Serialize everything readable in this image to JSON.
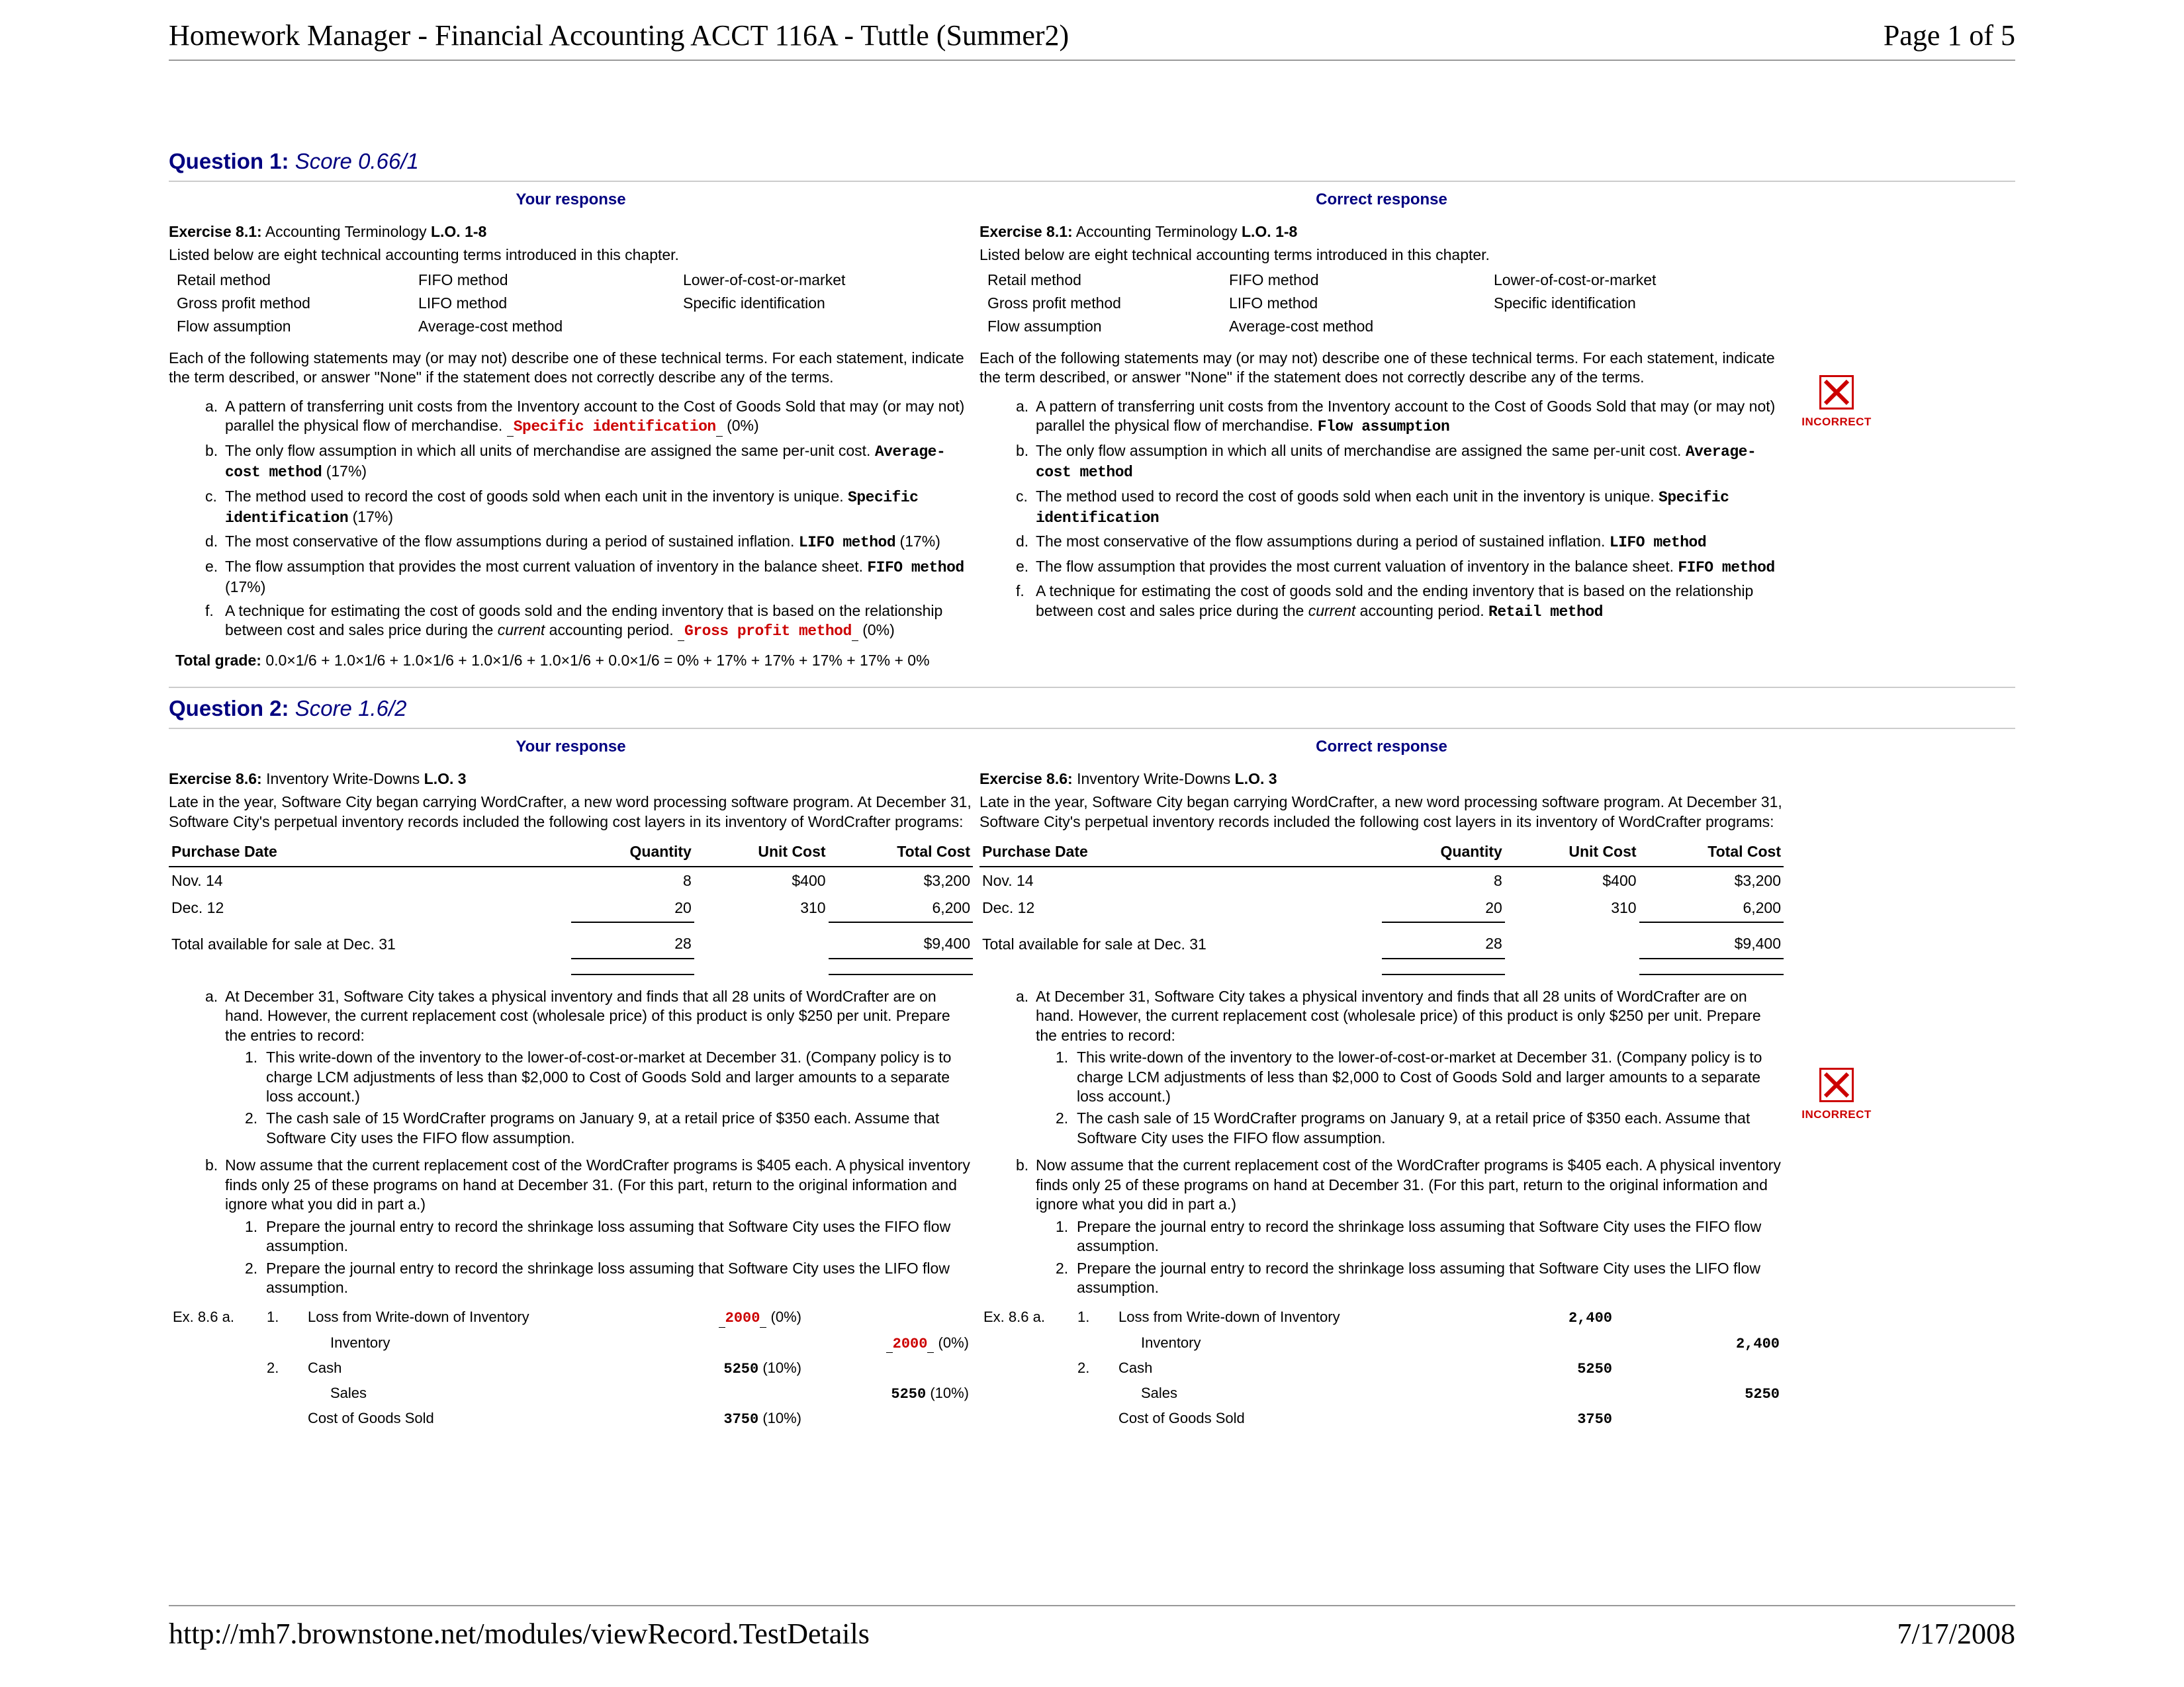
{
  "header": {
    "title": "Homework Manager - Financial Accounting ACCT 116A - Tuttle (Summer2)",
    "page": "Page 1 of 5"
  },
  "footer": {
    "url": "http://mh7.brownstone.net/modules/viewRecord.TestDetails",
    "date": "7/17/2008"
  },
  "labels": {
    "your": "Your response",
    "correct": "Correct response",
    "incorrect": "INCORRECT"
  },
  "q1": {
    "title": "Question 1:",
    "score": "Score 0.66/1",
    "ex_label": "Exercise 8.1:",
    "ex_name": "Accounting Terminology",
    "lo": "L.O. 1-8",
    "intro": "Listed below are eight technical accounting terms introduced in this chapter.",
    "terms": [
      [
        "Retail method",
        "FIFO method",
        "Lower-of-cost-or-market"
      ],
      [
        "Gross profit method",
        "LIFO method",
        "Specific identification"
      ],
      [
        "Flow assumption",
        "Average-cost method",
        ""
      ]
    ],
    "instr": "Each of the following statements may (or may not) describe one of these technical terms. For each statement, indicate the term described, or answer \"None\" if the statement does not correctly describe any of the terms.",
    "stmts_your": [
      {
        "l": "a.",
        "t": "A pattern of transferring unit costs from the Inventory account to the Cost of Goods Sold that may (or may not) parallel the physical flow of merchandise.",
        "ans": "Specific identification",
        "pct": "(0%)",
        "red": true
      },
      {
        "l": "b.",
        "t": "The only flow assumption in which all units of merchandise are assigned the same per-unit cost.",
        "ans": "Average-cost method",
        "pct": "(17%)"
      },
      {
        "l": "c.",
        "t": "The method used to record the cost of goods sold when each unit in the inventory is unique.",
        "ans": "Specific identification",
        "pct": "(17%)"
      },
      {
        "l": "d.",
        "t": "The most conservative of the flow assumptions during a period of sustained inflation.",
        "ans": "LIFO method",
        "pct": "(17%)"
      },
      {
        "l": "e.",
        "t": "The flow assumption that provides the most current valuation of inventory in the balance sheet.",
        "ans": "FIFO method",
        "pct": "(17%)"
      },
      {
        "l": "f.",
        "t": "A technique for estimating the cost of goods sold and the ending inventory that is based on the relationship between cost and sales price during the",
        "it": "current",
        "t2": "accounting period.",
        "ans": "Gross profit method",
        "pct": "(0%)",
        "red": true
      }
    ],
    "stmts_correct": [
      {
        "l": "a.",
        "t": "A pattern of transferring unit costs from the Inventory account to the Cost of Goods Sold that may (or may not) parallel the physical flow of merchandise.",
        "ans": "Flow assumption"
      },
      {
        "l": "b.",
        "t": "The only flow assumption in which all units of merchandise are assigned the same per-unit cost.",
        "ans": "Average-cost method"
      },
      {
        "l": "c.",
        "t": "The method used to record the cost of goods sold when each unit in the inventory is unique.",
        "ans": "Specific identification"
      },
      {
        "l": "d.",
        "t": "The most conservative of the flow assumptions during a period of sustained inflation.",
        "ans": "LIFO method"
      },
      {
        "l": "e.",
        "t": "The flow assumption that provides the most current valuation of inventory in the balance sheet.",
        "ans": "FIFO method"
      },
      {
        "l": "f.",
        "t": "A technique for estimating the cost of goods sold and the ending inventory that is based on the relationship between cost and sales price during the",
        "it": "current",
        "t2": "accounting period.",
        "ans": "Retail method"
      }
    ],
    "total_label": "Total grade:",
    "total_val": "0.0×1/6 + 1.0×1/6 + 1.0×1/6 + 1.0×1/6 + 1.0×1/6 + 0.0×1/6 = 0% + 17% + 17% + 17% + 17% + 0%"
  },
  "q2": {
    "title": "Question 2:",
    "score": "Score 1.6/2",
    "ex_label": "Exercise 8.6:",
    "ex_name": "Inventory Write-Downs",
    "lo": "L.O. 3",
    "intro": "Late in the year, Software City began carrying WordCrafter, a new word processing software program. At December 31, Software City's perpetual inventory records included the following cost layers in its inventory of WordCrafter programs:",
    "tbl": {
      "h": [
        "Purchase Date",
        "Quantity",
        "Unit Cost",
        "Total Cost"
      ],
      "rows": [
        [
          "Nov. 14",
          "8",
          "$400",
          "$3,200"
        ],
        [
          "Dec. 12",
          "20",
          "310",
          "6,200"
        ]
      ],
      "total": [
        "Total available for sale at Dec. 31",
        "28",
        "",
        "$9,400"
      ]
    },
    "parts": [
      {
        "l": "a.",
        "t": "At December 31, Software City takes a physical inventory and finds that all 28 units of WordCrafter are on hand. However, the current replacement cost (wholesale price) of this product is only $250 per unit. Prepare the entries to record:",
        "sub": [
          {
            "l": "1.",
            "t": "This write-down of the inventory to the lower-of-cost-or-market at December 31. (Company policy is to charge LCM adjustments of less than $2,000 to Cost of Goods Sold and larger amounts to a separate loss account.)"
          },
          {
            "l": "2.",
            "t": "The cash sale of 15 WordCrafter programs on January 9, at a retail price of $350 each. Assume that Software City uses the FIFO flow assumption."
          }
        ]
      },
      {
        "l": "b.",
        "t": "Now assume that the current replacement cost of the WordCrafter programs is $405 each. A physical inventory finds only 25 of these programs on hand at December 31. (For this part, return to the original information and ignore what you did in part a.)",
        "sub": [
          {
            "l": "1.",
            "t": "Prepare the journal entry to record the shrinkage loss assuming that Software City uses the FIFO flow assumption."
          },
          {
            "l": "2.",
            "t": "Prepare the journal entry to record the shrinkage loss assuming that Software City uses the LIFO flow assumption."
          }
        ]
      }
    ],
    "je_your": {
      "label": "Ex. 8.6 a.",
      "rows": [
        {
          "n": "1.",
          "acc": "Loss from Write-down of Inventory",
          "dr": "2000",
          "drpct": "(0%)",
          "dred": true
        },
        {
          "acc_indent": "Inventory",
          "cr": "2000",
          "crpct": "(0%)",
          "cred": true
        },
        {
          "n": "2.",
          "acc": "Cash",
          "dr": "5250",
          "drpct": "(10%)"
        },
        {
          "acc_indent": "Sales",
          "cr": "5250",
          "crpct": "(10%)"
        },
        {
          "acc": "Cost of Goods Sold",
          "dr": "3750",
          "drpct": "(10%)"
        }
      ]
    },
    "je_correct": {
      "label": "Ex. 8.6 a.",
      "rows": [
        {
          "n": "1.",
          "acc": "Loss from Write-down of Inventory",
          "dr": "2,400"
        },
        {
          "acc_indent": "Inventory",
          "cr": "2,400"
        },
        {
          "n": "2.",
          "acc": "Cash",
          "dr": "5250"
        },
        {
          "acc_indent": "Sales",
          "cr": "5250"
        },
        {
          "acc": "Cost of Goods Sold",
          "dr": "3750"
        }
      ]
    }
  }
}
